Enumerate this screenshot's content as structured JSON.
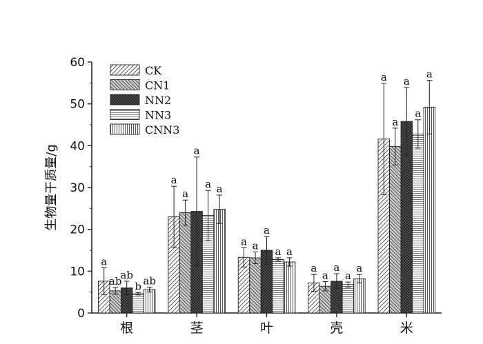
{
  "chart_data": {
    "type": "bar",
    "title": "",
    "xlabel": "",
    "ylabel": "生物量干质量/g",
    "ylim": [
      0,
      60
    ],
    "yticks": [
      0,
      10,
      20,
      30,
      40,
      50,
      60
    ],
    "grid": false,
    "legend_position": "top-left",
    "categories": [
      "根",
      "茎",
      "叶",
      "壳",
      "米"
    ],
    "series": [
      {
        "name": "CK",
        "pattern": "diag-right",
        "values": [
          7.6,
          23.0,
          13.3,
          7.2,
          41.6
        ],
        "errors": [
          3.2,
          7.3,
          2.3,
          2.0,
          13.3
        ],
        "labels": [
          "a",
          "a",
          "a",
          "a",
          "a"
        ]
      },
      {
        "name": "CN1",
        "pattern": "diag-left",
        "values": [
          5.3,
          24.0,
          13.2,
          6.4,
          39.8
        ],
        "errors": [
          0.8,
          3.0,
          1.4,
          1.1,
          4.4
        ],
        "labels": [
          "ab",
          "a",
          "a",
          "a",
          "a"
        ]
      },
      {
        "name": "NN2",
        "pattern": "crosshatch",
        "values": [
          6.0,
          24.3,
          15.0,
          7.6,
          45.8
        ],
        "errors": [
          1.6,
          13.0,
          3.3,
          1.8,
          8.1
        ],
        "labels": [
          "ab",
          "a",
          "a",
          "a",
          "a"
        ]
      },
      {
        "name": "NN3",
        "pattern": "horizontal",
        "values": [
          4.6,
          23.3,
          12.8,
          6.8,
          42.8
        ],
        "errors": [
          0.3,
          6.0,
          0.4,
          0.6,
          3.4
        ],
        "labels": [
          "b",
          "a",
          "a",
          "a",
          "a"
        ]
      },
      {
        "name": "CNN3",
        "pattern": "vertical",
        "values": [
          5.6,
          24.8,
          12.2,
          8.2,
          49.2
        ],
        "errors": [
          0.6,
          3.4,
          1.0,
          1.0,
          6.4
        ],
        "labels": [
          "ab",
          "a",
          "a",
          "a",
          "a"
        ]
      }
    ],
    "colors": {
      "stroke": "#222222",
      "background": "#ffffff"
    }
  }
}
